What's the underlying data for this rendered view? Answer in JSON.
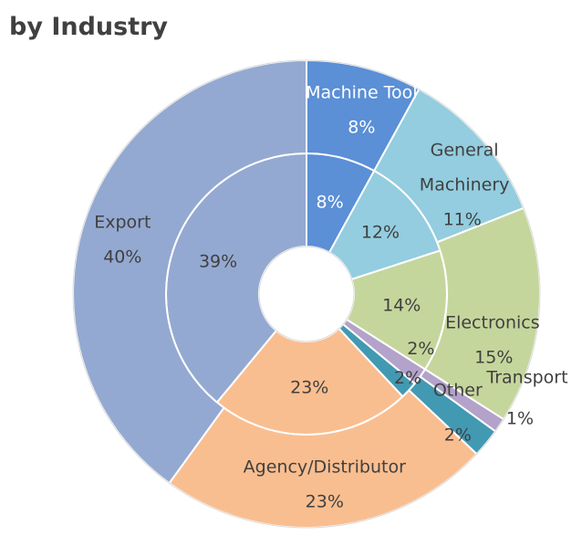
{
  "title": "by Industry",
  "colors": {
    "machine_tool": "#5b8fd6",
    "general_machinery": "#93cddf",
    "electronics": "#c5d69c",
    "transport": "#b3a2c9",
    "other": "#4299b2",
    "agency_distributor": "#f9be90",
    "export": "#94a9d1"
  },
  "chart_data": {
    "type": "pie",
    "subtype": "doughnut-two-ring",
    "title": "by Industry",
    "categories": [
      "Machine Tool",
      "General Machinery",
      "Electronics",
      "Transport",
      "Other",
      "Agency/Distributor",
      "Export"
    ],
    "category_label_lines": [
      [
        "Machine Tool"
      ],
      [
        "General",
        "Machinery"
      ],
      [
        "Electronics"
      ],
      [
        "Transport"
      ],
      [
        "Other"
      ],
      [
        "Agency/Distributor"
      ],
      [
        "Export"
      ]
    ],
    "series": [
      {
        "name": "",
        "ring": "inner",
        "values": [
          8,
          12,
          14,
          2,
          2,
          23,
          39
        ],
        "labels": [
          "8%",
          "12%",
          "14%",
          "2%",
          "2%",
          "23%",
          "39%"
        ]
      },
      {
        "name": "",
        "ring": "outer",
        "values": [
          8,
          11,
          15,
          1,
          2,
          23,
          40
        ],
        "labels": [
          "8%",
          "11%",
          "15%",
          "1%",
          "2%",
          "23%",
          "40%"
        ]
      }
    ],
    "legend": "none"
  }
}
